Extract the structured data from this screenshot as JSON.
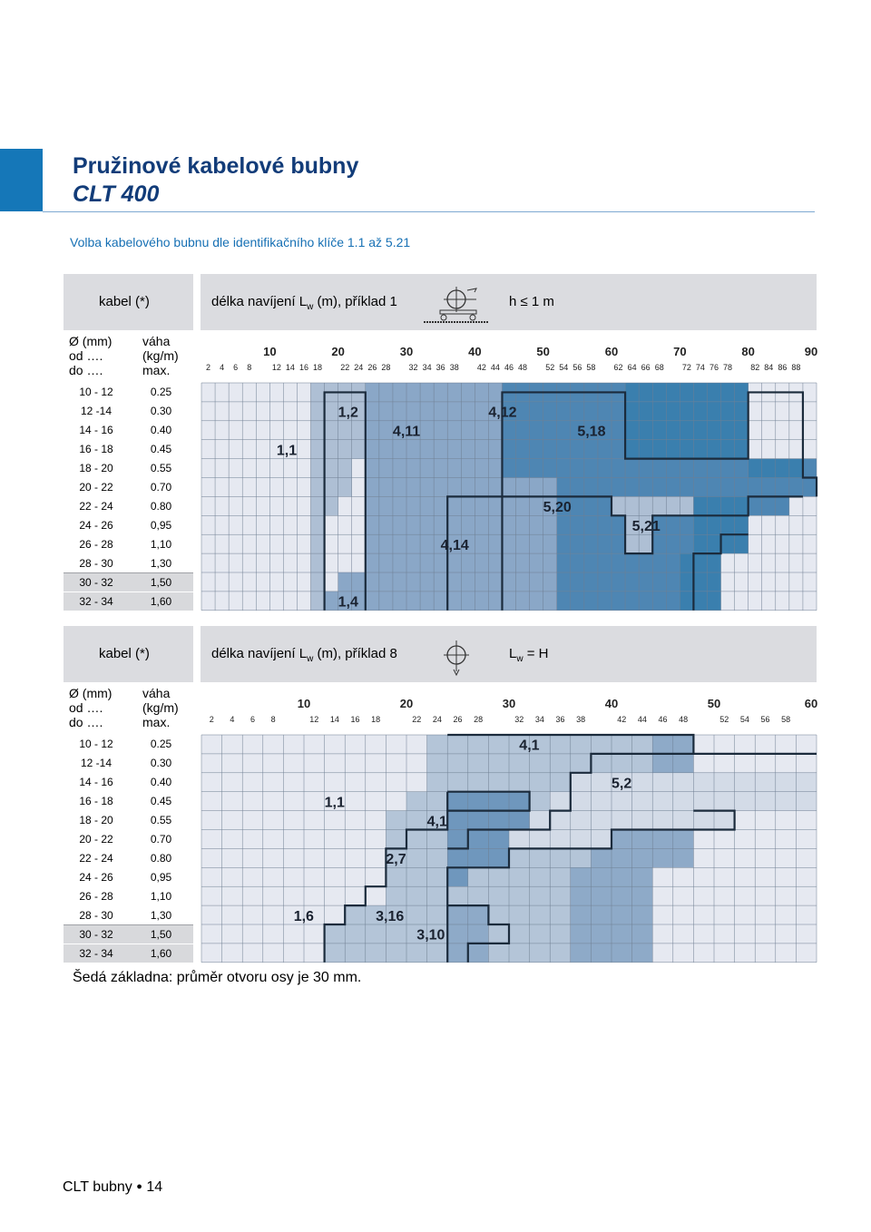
{
  "header": {
    "title": "Pružinové kabelové bubny",
    "subtitle": "CLT 400",
    "intro": "Volba kabelového bubnu dle identifikačního klíče 1.1 až 5.21"
  },
  "charts": [
    {
      "cable_label": "kabel (*)",
      "length_label_prefix": "délka navíjení L",
      "length_label_sub": "w",
      "length_label_suffix": " (m), příklad 1",
      "condition": "h ≤ 1 m",
      "icon": "horizontal-drum-icon",
      "col_dia": [
        "Ø (mm)",
        "od ….",
        "do …."
      ],
      "col_weight": [
        "váha",
        "(kg/m)",
        "max."
      ],
      "rows": [
        {
          "dia": "10 - 12",
          "w": "0.25"
        },
        {
          "dia": "12 -14",
          "w": "0.30"
        },
        {
          "dia": "14 - 16",
          "w": "0.40"
        },
        {
          "dia": "16 - 18",
          "w": "0.45"
        },
        {
          "dia": "18 - 20",
          "w": "0.55"
        },
        {
          "dia": "20 - 22",
          "w": "0.70"
        },
        {
          "dia": "22 - 24",
          "w": "0.80"
        },
        {
          "dia": "24 - 26",
          "w": "0,95"
        },
        {
          "dia": "26 - 28",
          "w": "1,10"
        },
        {
          "dia": "28 - 30",
          "w": "1,30"
        },
        {
          "dia": "30 - 32",
          "w": "1,50"
        },
        {
          "dia": "32 - 34",
          "w": "1,60"
        }
      ],
      "major_ticks": [
        "10",
        "20",
        "30",
        "40",
        "50",
        "60",
        "70",
        "80",
        "90"
      ],
      "minor_ticks": [
        "2",
        "4",
        "6",
        "8",
        "12",
        "14",
        "16",
        "18",
        "22",
        "24",
        "26",
        "28",
        "32",
        "34",
        "36",
        "38",
        "42",
        "44",
        "46",
        "48",
        "52",
        "54",
        "56",
        "58",
        "62",
        "64",
        "66",
        "68",
        "72",
        "74",
        "76",
        "78",
        "82",
        "84",
        "86",
        "88"
      ],
      "x_max": 90,
      "zone_labels": [
        {
          "text": "1,1",
          "x": 11,
          "row": 3
        },
        {
          "text": "1,2",
          "x": 20,
          "row": 1
        },
        {
          "text": "4,11",
          "x": 28,
          "row": 2
        },
        {
          "text": "4,12",
          "x": 42,
          "row": 1
        },
        {
          "text": "5,18",
          "x": 55,
          "row": 2
        },
        {
          "text": "5,20",
          "x": 50,
          "row": 6
        },
        {
          "text": "5,21",
          "x": 63,
          "row": 7
        },
        {
          "text": "4,14",
          "x": 35,
          "row": 8
        },
        {
          "text": "1,4",
          "x": 20,
          "row": 11
        }
      ],
      "colors": [
        "#e6e9f1",
        "#aebfd4",
        "#8aa7c7",
        "#4e86b3",
        "#3a7fae"
      ]
    },
    {
      "cable_label": "kabel (*)",
      "length_label_prefix": "délka navíjení L",
      "length_label_sub": "w",
      "length_label_suffix": " (m), příklad 8",
      "condition_prefix": "L",
      "condition_sub": "w",
      "condition_suffix": " = H",
      "icon": "vertical-drum-icon",
      "col_dia": [
        "Ø (mm)",
        "od ….",
        "do …."
      ],
      "col_weight": [
        "váha",
        "(kg/m)",
        "max."
      ],
      "rows": [
        {
          "dia": "10 - 12",
          "w": "0.25"
        },
        {
          "dia": "12 -14",
          "w": "0.30"
        },
        {
          "dia": "14 - 16",
          "w": "0.40"
        },
        {
          "dia": "16 - 18",
          "w": "0.45"
        },
        {
          "dia": "18 - 20",
          "w": "0.55"
        },
        {
          "dia": "20 - 22",
          "w": "0.70"
        },
        {
          "dia": "22 - 24",
          "w": "0.80"
        },
        {
          "dia": "24 - 26",
          "w": "0,95"
        },
        {
          "dia": "26 - 28",
          "w": "1,10"
        },
        {
          "dia": "28 - 30",
          "w": "1,30"
        },
        {
          "dia": "30 - 32",
          "w": "1,50"
        },
        {
          "dia": "32 - 34",
          "w": "1,60"
        }
      ],
      "major_ticks": [
        "10",
        "20",
        "30",
        "40",
        "50",
        "60"
      ],
      "minor_ticks": [
        "2",
        "4",
        "6",
        "8",
        "12",
        "14",
        "16",
        "18",
        "22",
        "24",
        "26",
        "28",
        "32",
        "34",
        "36",
        "38",
        "42",
        "44",
        "46",
        "48",
        "52",
        "54",
        "56",
        "58"
      ],
      "x_max": 60,
      "zone_labels": [
        {
          "text": "4,1",
          "x": 31,
          "row": 0
        },
        {
          "text": "1,1",
          "x": 12,
          "row": 3
        },
        {
          "text": "5,2",
          "x": 40,
          "row": 2
        },
        {
          "text": "4,1",
          "x": 22,
          "row": 4
        },
        {
          "text": "2,7",
          "x": 18,
          "row": 6
        },
        {
          "text": "1,6",
          "x": 9,
          "row": 9
        },
        {
          "text": "3,16",
          "x": 17,
          "row": 9
        },
        {
          "text": "3,10",
          "x": 21,
          "row": 10
        }
      ],
      "colors": [
        "#e6e9f1",
        "#b4c5d8",
        "#8eaac8",
        "#6f97bd",
        "#d3dbe7"
      ]
    }
  ],
  "footnote": "Šedá základna: průměr otvoru osy je 30 mm.",
  "footer": {
    "text": "CLT bubny",
    "page": "14"
  }
}
